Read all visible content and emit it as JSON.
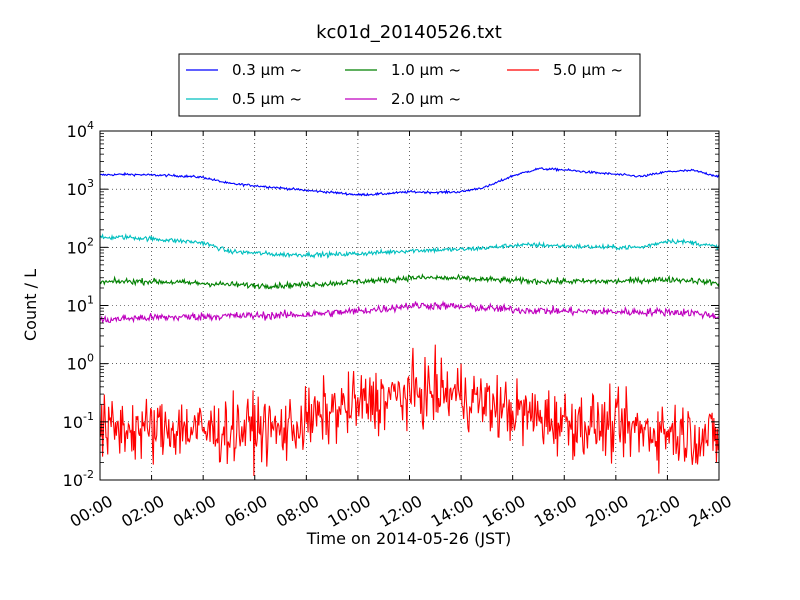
{
  "chart_data": {
    "type": "line",
    "title": "kc01d_20140526.txt",
    "xlabel": "Time on 2014-05-26 (JST)",
    "ylabel": "Count / L",
    "yscale": "log",
    "xlim": [
      "00:00",
      "24:00"
    ],
    "ylim": [
      0.01,
      10000
    ],
    "grid": true,
    "legend_position": "top, outside plot, 3 columns",
    "x_ticks": [
      "00:00",
      "02:00",
      "04:00",
      "06:00",
      "08:00",
      "10:00",
      "12:00",
      "14:00",
      "16:00",
      "18:00",
      "20:00",
      "22:00",
      "24:00"
    ],
    "y_ticks": [
      {
        "base": "10",
        "exp": "-2"
      },
      {
        "base": "10",
        "exp": "-1"
      },
      {
        "base": "10",
        "exp": "0"
      },
      {
        "base": "10",
        "exp": "1"
      },
      {
        "base": "10",
        "exp": "2"
      },
      {
        "base": "10",
        "exp": "3"
      },
      {
        "base": "10",
        "exp": "4"
      }
    ],
    "x": [
      "00:00",
      "01:00",
      "02:00",
      "03:00",
      "04:00",
      "05:00",
      "06:00",
      "07:00",
      "08:00",
      "09:00",
      "10:00",
      "11:00",
      "12:00",
      "13:00",
      "14:00",
      "15:00",
      "16:00",
      "17:00",
      "18:00",
      "19:00",
      "20:00",
      "21:00",
      "22:00",
      "23:00",
      "24:00"
    ],
    "series": [
      {
        "name": "0.3 μm ~",
        "color": "#0000ff",
        "noise": 0.01,
        "values": [
          1750,
          1800,
          1750,
          1700,
          1600,
          1250,
          1150,
          1050,
          950,
          880,
          800,
          830,
          900,
          880,
          900,
          1100,
          1700,
          2250,
          2150,
          1950,
          1800,
          1650,
          2000,
          2100,
          1650
        ]
      },
      {
        "name": "0.5 μm ~",
        "color": "#00bfbf",
        "noise": 0.02,
        "values": [
          145,
          150,
          140,
          130,
          120,
          85,
          80,
          75,
          75,
          75,
          78,
          82,
          88,
          90,
          92,
          98,
          108,
          110,
          105,
          102,
          100,
          100,
          130,
          120,
          100
        ]
      },
      {
        "name": "1.0 μm ~",
        "color": "#008000",
        "noise": 0.025,
        "values": [
          25,
          26,
          26,
          25,
          24,
          23,
          22,
          22,
          23,
          24,
          26,
          27,
          30,
          30,
          29,
          28,
          27,
          26,
          26,
          26,
          26,
          27,
          28,
          27,
          24
        ]
      },
      {
        "name": "2.0 μm ~",
        "color": "#bf00bf",
        "noise": 0.035,
        "values": [
          5.5,
          6.0,
          6.2,
          6.3,
          6.5,
          6.6,
          6.7,
          6.8,
          7.0,
          7.5,
          8.0,
          8.8,
          10.0,
          10.0,
          9.5,
          9.0,
          8.5,
          8.2,
          8.0,
          7.9,
          7.8,
          7.7,
          7.8,
          7.5,
          6.5
        ]
      },
      {
        "name": "5.0 μm ~",
        "color": "#ff0000",
        "noise": 0.28,
        "values": [
          0.07,
          0.08,
          0.07,
          0.08,
          0.07,
          0.07,
          0.08,
          0.07,
          0.1,
          0.15,
          0.2,
          0.25,
          0.3,
          0.32,
          0.3,
          0.2,
          0.15,
          0.12,
          0.1,
          0.09,
          0.08,
          0.07,
          0.07,
          0.06,
          0.05
        ]
      }
    ]
  }
}
